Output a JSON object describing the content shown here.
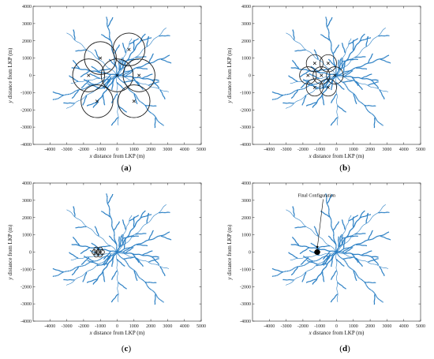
{
  "chart_data": [
    {
      "type": "scatter",
      "panel": "a",
      "caption_letter": "a",
      "xlabel_var": "x",
      "xlabel": "distance from LKP (m)",
      "ylabel_var": "y",
      "ylabel": "distance from LKP (m)",
      "xlim": [
        -5000,
        5000
      ],
      "ylim": [
        -4000,
        4000
      ],
      "xticks": [
        -4000,
        -3000,
        -2000,
        -1000,
        0,
        1000,
        2000,
        3000,
        4000,
        5000
      ],
      "yticks": [
        -4000,
        -3000,
        -2000,
        -1000,
        0,
        1000,
        2000,
        3000,
        4000
      ],
      "circle_radius": 950,
      "centers": [
        [
          -1000,
          1000
        ],
        [
          700,
          1500
        ],
        [
          -1700,
          0
        ],
        [
          0,
          0
        ],
        [
          1300,
          0
        ],
        [
          -1200,
          -1500
        ],
        [
          1000,
          -1500
        ]
      ],
      "annotation": ""
    },
    {
      "type": "scatter",
      "panel": "b",
      "caption_letter": "b",
      "xlabel_var": "x",
      "xlabel": "distance from LKP (m)",
      "ylabel_var": "y",
      "ylabel": "distance from LKP (m)",
      "xlim": [
        -5000,
        5000
      ],
      "ylim": [
        -4000,
        4000
      ],
      "xticks": [
        -4000,
        -3000,
        -2000,
        -1000,
        0,
        1000,
        2000,
        3000,
        4000,
        5000
      ],
      "yticks": [
        -4000,
        -3000,
        -2000,
        -1000,
        0,
        1000,
        2000,
        3000,
        4000
      ],
      "circle_radius": 500,
      "centers": [
        [
          -1300,
          700
        ],
        [
          -500,
          700
        ],
        [
          -1700,
          0
        ],
        [
          -900,
          0
        ],
        [
          -100,
          0
        ],
        [
          -1300,
          -700
        ],
        [
          -500,
          -700
        ]
      ],
      "annotation": ""
    },
    {
      "type": "scatter",
      "panel": "c",
      "caption_letter": "c",
      "xlabel_var": "x",
      "xlabel": "distance from LKP (m)",
      "ylabel_var": "y",
      "ylabel": "distance from LKP (m)",
      "xlim": [
        -5000,
        5000
      ],
      "ylim": [
        -4000,
        4000
      ],
      "xticks": [
        -4000,
        -3000,
        -2000,
        -1000,
        0,
        1000,
        2000,
        3000,
        4000,
        5000
      ],
      "yticks": [
        -4000,
        -3000,
        -2000,
        -1000,
        0,
        1000,
        2000,
        3000,
        4000
      ],
      "circle_radius": 140,
      "centers": [
        [
          -1250,
          150
        ],
        [
          -1020,
          150
        ],
        [
          -1360,
          0
        ],
        [
          -1130,
          0
        ],
        [
          -900,
          0
        ],
        [
          -1250,
          -150
        ],
        [
          -1020,
          -150
        ]
      ],
      "annotation": ""
    },
    {
      "type": "scatter",
      "panel": "d",
      "caption_letter": "d",
      "xlabel_var": "x",
      "xlabel": "distance from LKP (m)",
      "ylabel_var": "y",
      "ylabel": "distance from LKP (m)",
      "xlim": [
        -5000,
        5000
      ],
      "ylim": [
        -4000,
        4000
      ],
      "xticks": [
        -4000,
        -3000,
        -2000,
        -1000,
        0,
        1000,
        2000,
        3000,
        4000,
        5000
      ],
      "yticks": [
        -4000,
        -3000,
        -2000,
        -1000,
        0,
        1000,
        2000,
        3000,
        4000
      ],
      "circle_radius": 60,
      "centers": [
        [
          -1200,
          60
        ],
        [
          -1100,
          60
        ],
        [
          -1250,
          0
        ],
        [
          -1150,
          0
        ],
        [
          -1050,
          0
        ],
        [
          -1200,
          -60
        ],
        [
          -1100,
          -60
        ]
      ],
      "annotation": "Final Configuration",
      "annotation_target": [
        -1150,
        0
      ],
      "annotation_text_at": [
        -2300,
        3200
      ]
    }
  ],
  "colors": {
    "points": "#2a7fc4",
    "circles": "#1a1a1a",
    "axis": "#222222"
  }
}
